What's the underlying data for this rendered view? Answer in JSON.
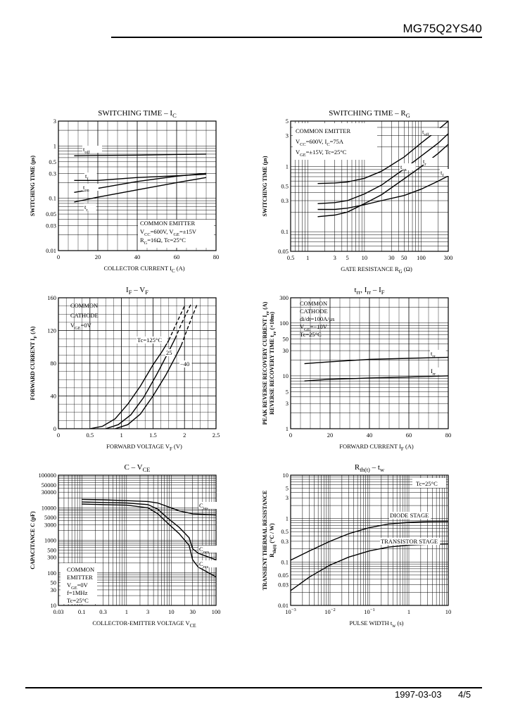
{
  "header": {
    "part_number": "MG75Q2YS40"
  },
  "footer": {
    "date": "1997-03-03",
    "page": "4/5"
  },
  "chart_data": [
    {
      "id": "c1",
      "type": "line",
      "title": "SWITCHING TIME – I",
      "title_sub": "C",
      "xlabel": "COLLECTOR CURRENT",
      "xlabel_var": "I",
      "xlabel_sub": "C",
      "xlabel_unit": "(A)",
      "ylabel": "SWITCHING TIME",
      "ylabel_unit": "(μs)",
      "xscale": "linear",
      "yscale": "log",
      "xlim": [
        0,
        80
      ],
      "ylim": [
        0.01,
        3
      ],
      "xticks": [
        0,
        20,
        40,
        60,
        80
      ],
      "xtick_labels": [
        "0",
        "20",
        "40",
        "60",
        "80"
      ],
      "yticks": [
        0.01,
        0.03,
        0.05,
        0.1,
        0.3,
        0.5,
        1,
        3
      ],
      "ytick_labels": [
        "0.01",
        "0.03",
        "0.05",
        "0.1",
        "0.3",
        "0.5",
        "1",
        "3"
      ],
      "conditions": [
        "COMMON EMITTER",
        "V_CC=600V, V_GE=±15V",
        "R_G=16Ω, Tc=25°C"
      ],
      "series": [
        {
          "name": "t_off",
          "x": [
            8,
            20,
            40,
            60,
            75
          ],
          "y": [
            0.65,
            0.66,
            0.67,
            0.69,
            0.7
          ]
        },
        {
          "name": "t_f",
          "x": [
            8,
            20,
            40,
            60,
            75
          ],
          "y": [
            0.22,
            0.22,
            0.25,
            0.27,
            0.29
          ]
        },
        {
          "name": "t_on",
          "x": [
            8,
            20,
            40,
            60,
            75
          ],
          "y": [
            0.13,
            0.155,
            0.21,
            0.265,
            0.3
          ]
        },
        {
          "name": "t_r",
          "x": [
            8,
            20,
            40,
            60,
            75
          ],
          "y": [
            0.085,
            0.105,
            0.145,
            0.2,
            0.25
          ]
        }
      ]
    },
    {
      "id": "c2",
      "type": "line",
      "title": "SWITCHING TIME – R",
      "title_sub": "G",
      "xlabel": "GATE RESISTANCE",
      "xlabel_var": "R",
      "xlabel_sub": "G",
      "xlabel_unit": "(Ω)",
      "ylabel": "SWITCHING TIME",
      "ylabel_unit": "(μs)",
      "xscale": "log",
      "yscale": "log",
      "xlim": [
        0.5,
        300
      ],
      "ylim": [
        0.05,
        5
      ],
      "xticks": [
        0.5,
        1,
        3,
        5,
        10,
        30,
        50,
        100,
        300
      ],
      "xtick_labels": [
        "0.5",
        "1",
        "3",
        "5",
        "10",
        "30",
        "50",
        "100",
        "300"
      ],
      "yticks": [
        0.05,
        0.1,
        0.3,
        0.5,
        1,
        3,
        5
      ],
      "ytick_labels": [
        "0.05",
        "0.1",
        "0.3",
        "0.5",
        "1",
        "3",
        "5"
      ],
      "conditions": [
        "COMMON EMITTER",
        "V_CC=600V, I_C=75A",
        "V_GE=±15V, Tc=25°C"
      ],
      "series": [
        {
          "name": "t_off",
          "x": [
            1.5,
            3,
            5,
            10,
            20,
            50,
            100,
            200,
            300
          ],
          "y": [
            0.55,
            0.56,
            0.58,
            0.66,
            0.85,
            1.4,
            2.3,
            3.7,
            5
          ]
        },
        {
          "name": "t_on",
          "x": [
            1.5,
            3,
            5,
            10,
            20,
            50,
            100,
            200,
            300
          ],
          "y": [
            0.27,
            0.28,
            0.3,
            0.38,
            0.52,
            0.92,
            1.45,
            2.3,
            3.2
          ]
        },
        {
          "name": "t_r",
          "x": [
            1.5,
            3,
            5,
            10,
            20,
            50,
            100,
            200,
            300
          ],
          "y": [
            0.17,
            0.18,
            0.2,
            0.27,
            0.37,
            0.65,
            1.0,
            1.6,
            2.2
          ]
        },
        {
          "name": "t_f",
          "x": [
            1.5,
            3,
            5,
            10,
            20,
            50,
            100,
            200,
            300
          ],
          "y": [
            0.22,
            0.22,
            0.23,
            0.26,
            0.3,
            0.36,
            0.45,
            0.6,
            0.72
          ]
        }
      ]
    },
    {
      "id": "c3",
      "type": "line",
      "title": "I",
      "title_sub": "F",
      "title_mid": " – V",
      "title_sub2": "F",
      "xlabel": "FORWARD VOLTAGE",
      "xlabel_var": "V",
      "xlabel_sub": "F",
      "xlabel_unit": "(V)",
      "ylabel": "FORWARD CURRENT",
      "ylabel_var": "I",
      "ylabel_sub": "F",
      "ylabel_unit": "(A)",
      "xscale": "linear",
      "yscale": "linear",
      "xlim": [
        0,
        2.5
      ],
      "ylim": [
        0,
        160
      ],
      "xticks": [
        0,
        0.5,
        1,
        1.5,
        2,
        2.5
      ],
      "xtick_labels": [
        "0",
        "0.5",
        "1",
        "1.5",
        "2",
        "2.5"
      ],
      "yticks": [
        0,
        40,
        80,
        120,
        160
      ],
      "ytick_labels": [
        "0",
        "40",
        "80",
        "120",
        "160"
      ],
      "conditions": [
        "COMMON",
        "CATHODE",
        "V_GE=0V"
      ],
      "series": [
        {
          "name": "Tc=125°C",
          "x": [
            0.5,
            0.7,
            0.9,
            1.1,
            1.3,
            1.5,
            1.65,
            1.75
          ],
          "y": [
            0,
            3,
            12,
            30,
            52,
            78,
            95,
            108
          ],
          "dash_x": [
            1.75,
            1.85,
            2.0
          ],
          "dash_y": [
            108,
            125,
            150
          ]
        },
        {
          "name": "25",
          "x": [
            0.75,
            0.95,
            1.15,
            1.35,
            1.55,
            1.72,
            1.85
          ],
          "y": [
            0,
            5,
            17,
            38,
            65,
            90,
            110
          ],
          "dash_x": [
            1.85,
            1.95,
            2.1
          ],
          "dash_y": [
            110,
            128,
            152
          ]
        },
        {
          "name": "−40",
          "x": [
            0.9,
            1.1,
            1.3,
            1.5,
            1.7,
            1.85,
            1.95
          ],
          "y": [
            0,
            5,
            18,
            40,
            65,
            87,
            102
          ],
          "dash_x": [
            1.95,
            2.05,
            2.2
          ],
          "dash_y": [
            102,
            123,
            152
          ]
        }
      ]
    },
    {
      "id": "c4",
      "type": "line",
      "title": "t",
      "title_sub": "rr",
      "title_mid": ", I",
      "title_sub2": "rr",
      "title_end": " – I",
      "title_sub3": "F",
      "xlabel": "FORWARD CURRENT",
      "xlabel_var": "I",
      "xlabel_sub": "F",
      "xlabel_unit": "(A)",
      "ylabel": "PEAK REVERSE RECOVERY CURRENT",
      "ylabel2": "REVERSE RECOVERY TIME",
      "ylabel_var": "I",
      "ylabel_sub": "rr",
      "ylabel_unit": "(A)",
      "ylabel2_var": "t",
      "ylabel2_sub": "rr",
      "ylabel2_unit": "(×10ns)",
      "xscale": "linear",
      "yscale": "log",
      "xlim": [
        0,
        80
      ],
      "ylim": [
        1,
        300
      ],
      "xticks": [
        0,
        20,
        40,
        60,
        80
      ],
      "xtick_labels": [
        "0",
        "20",
        "40",
        "60",
        "80"
      ],
      "yticks": [
        1,
        3,
        5,
        10,
        30,
        50,
        100,
        300
      ],
      "ytick_labels": [
        "1",
        "3",
        "5",
        "10",
        "30",
        "50",
        "100",
        "300"
      ],
      "conditions": [
        "COMMON",
        "CATHODE",
        "di/dt=100A/μs",
        "V_GE=−10V",
        "Tc=25°C"
      ],
      "series": [
        {
          "name": "t_rr",
          "x": [
            7,
            20,
            40,
            60,
            80
          ],
          "y": [
            17,
            18.5,
            20.5,
            21.5,
            22.5
          ]
        },
        {
          "name": "I_rr",
          "x": [
            7,
            20,
            40,
            60,
            80
          ],
          "y": [
            8,
            8.6,
            9.1,
            9.5,
            10
          ]
        }
      ]
    },
    {
      "id": "c5",
      "type": "line",
      "title": "C – V",
      "title_sub": "CE",
      "xlabel": "COLLECTOR-EMITTER VOLTAGE",
      "xlabel_var": "V",
      "xlabel_sub": "CE",
      "xlabel_unit": "",
      "ylabel": "CAPACITANCE",
      "ylabel_var": "C",
      "ylabel_unit": "(pF)",
      "xscale": "log",
      "yscale": "log",
      "xlim": [
        0.03,
        100
      ],
      "ylim": [
        10,
        100000
      ],
      "xticks": [
        0.03,
        0.1,
        0.3,
        1,
        3,
        10,
        30,
        100
      ],
      "xtick_labels": [
        "0.03",
        "0.1",
        "0.3",
        "1",
        "3",
        "10",
        "30",
        "100"
      ],
      "yticks": [
        10,
        30,
        50,
        100,
        300,
        500,
        1000,
        3000,
        5000,
        10000,
        30000,
        50000,
        100000
      ],
      "ytick_labels": [
        "10",
        "30",
        "50",
        "100",
        "300",
        "500",
        "1000",
        "3000",
        "5000",
        "10000",
        "30000",
        "50000",
        "100000"
      ],
      "conditions": [
        "COMMON",
        "EMITTER",
        "V_GE=0V",
        "f=1MHz",
        "Tc=25°C"
      ],
      "series": [
        {
          "name": "C_ies",
          "x": [
            0.1,
            0.3,
            1,
            3,
            5,
            8,
            15,
            30,
            100
          ],
          "y": [
            18000,
            17500,
            16500,
            15500,
            14000,
            11000,
            8000,
            6500,
            6000
          ]
        },
        {
          "name": "C_oes",
          "x": [
            0.1,
            0.3,
            1,
            3,
            5,
            8,
            15,
            25,
            30,
            40,
            100
          ],
          "y": [
            15000,
            14500,
            14000,
            12500,
            9000,
            5000,
            2500,
            1200,
            550,
            400,
            250
          ]
        },
        {
          "name": "C_res",
          "x": [
            0.1,
            0.3,
            1,
            3,
            5,
            8,
            15,
            25,
            30,
            40,
            100
          ],
          "y": [
            13000,
            12500,
            12000,
            10000,
            6500,
            3500,
            1600,
            700,
            250,
            150,
            75
          ]
        }
      ]
    },
    {
      "id": "c6",
      "type": "line",
      "title": "R",
      "title_sub": "th(t)",
      "title_mid": " – t",
      "title_sub2": "w",
      "xlabel": "PULSE WIDTH",
      "xlabel_var": "t",
      "xlabel_sub": "w",
      "xlabel_unit": "(s)",
      "ylabel": "TRANSIENT THERMAL RESISTANCE",
      "ylabel2_var": "R",
      "ylabel2_sub": "th(t)",
      "ylabel2_unit": "(°C / W)",
      "xscale": "log",
      "yscale": "log",
      "xlim": [
        0.001,
        10
      ],
      "ylim": [
        0.01,
        10
      ],
      "xticks": [
        0.001,
        0.01,
        0.1,
        1,
        10
      ],
      "xtick_labels": [
        "10",
        "10",
        "10",
        "1",
        "10"
      ],
      "xtick_exp": [
        "−3",
        "−2",
        "−1",
        "",
        ""
      ],
      "yticks": [
        0.01,
        0.03,
        0.05,
        0.1,
        0.3,
        0.5,
        1,
        3,
        5,
        10
      ],
      "ytick_labels": [
        "0.01",
        "0.03",
        "0.05",
        "0.1",
        "0.3",
        "0.5",
        "1",
        "3",
        "5",
        "10"
      ],
      "conditions": [
        "Tc=25°C"
      ],
      "series": [
        {
          "name": "DIODE STAGE",
          "x": [
            0.001,
            0.003,
            0.01,
            0.03,
            0.1,
            0.3,
            1,
            3,
            10
          ],
          "y": [
            0.11,
            0.18,
            0.3,
            0.45,
            0.62,
            0.75,
            0.82,
            0.85,
            0.86
          ]
        },
        {
          "name": "TRANSISTOR STAGE",
          "x": [
            0.001,
            0.003,
            0.01,
            0.03,
            0.1,
            0.3,
            1,
            3,
            10
          ],
          "y": [
            0.022,
            0.045,
            0.085,
            0.13,
            0.18,
            0.22,
            0.245,
            0.255,
            0.26
          ]
        }
      ]
    }
  ]
}
